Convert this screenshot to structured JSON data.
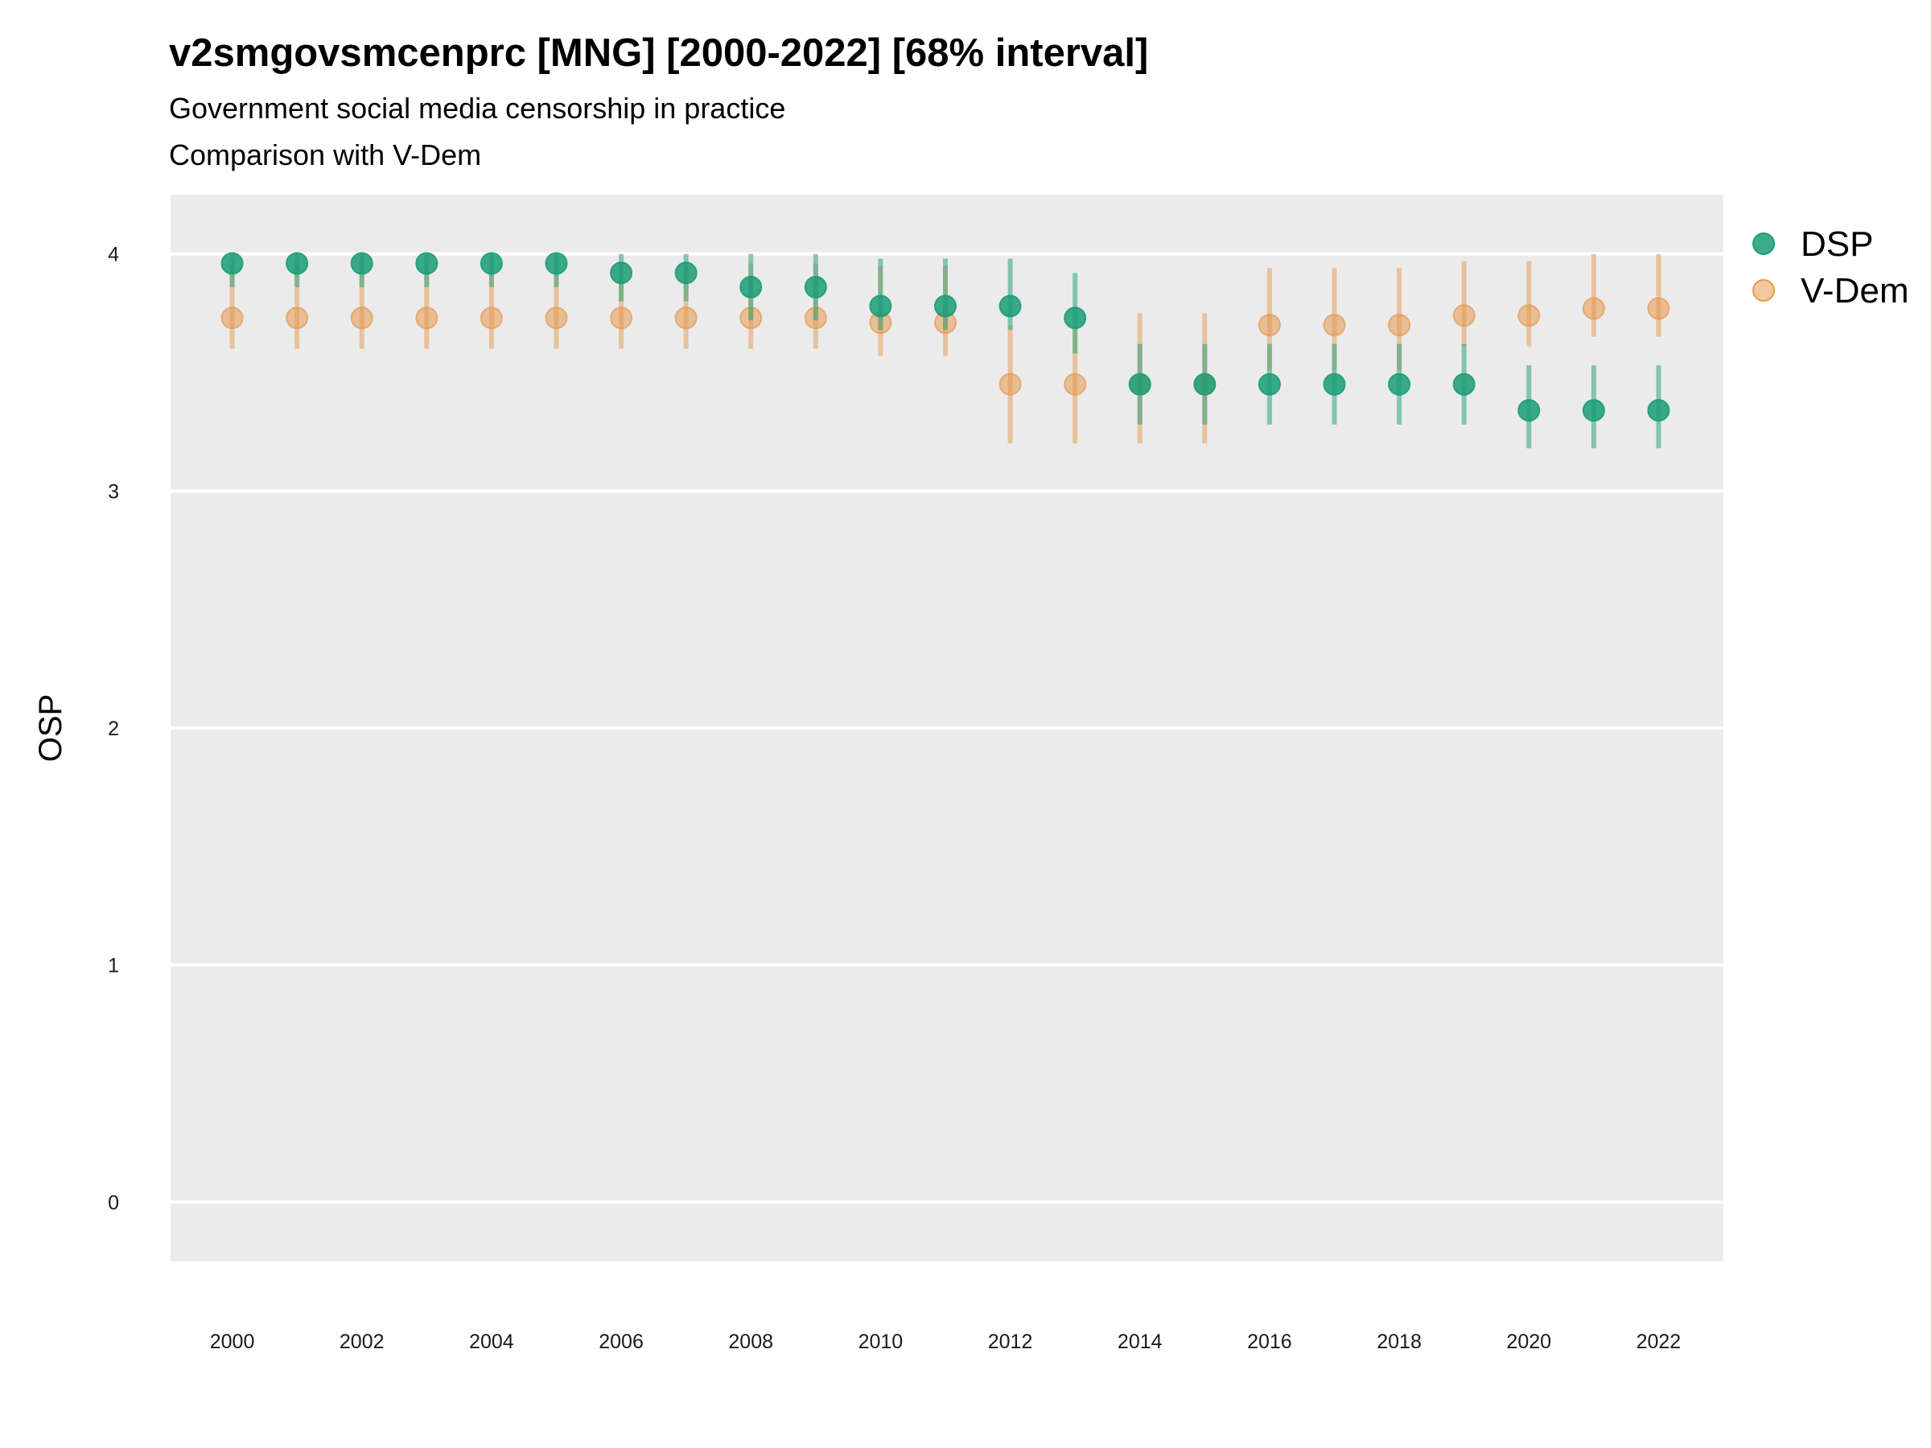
{
  "chart_data": {
    "type": "scatter",
    "title": "v2smgovsmcenprc [MNG] [2000-2022] [68% interval]",
    "subtitle": "Government social media censorship in practice",
    "subtitle2": "Comparison with V-Dem",
    "xlabel": "",
    "ylabel": "OSP",
    "ylim": [
      -0.25,
      4.25
    ],
    "xlim": [
      1999.05,
      2023.0
    ],
    "yticks": [
      0,
      1,
      2,
      3,
      4
    ],
    "xticks": [
      2000,
      2002,
      2004,
      2006,
      2008,
      2010,
      2012,
      2014,
      2016,
      2018,
      2020,
      2022
    ],
    "grid": true,
    "legend_position": "right-top",
    "x": [
      2000,
      2001,
      2002,
      2003,
      2004,
      2005,
      2006,
      2007,
      2008,
      2009,
      2010,
      2011,
      2012,
      2013,
      2014,
      2015,
      2016,
      2017,
      2018,
      2019,
      2020,
      2021,
      2022
    ],
    "series": [
      {
        "name": "V-Dem",
        "color": "#E6994F",
        "values": [
          3.73,
          3.73,
          3.73,
          3.73,
          3.73,
          3.73,
          3.73,
          3.73,
          3.73,
          3.73,
          3.71,
          3.71,
          3.45,
          3.45,
          3.45,
          3.45,
          3.7,
          3.7,
          3.7,
          3.74,
          3.74,
          3.77,
          3.77
        ],
        "lower": [
          3.6,
          3.6,
          3.6,
          3.6,
          3.6,
          3.6,
          3.6,
          3.6,
          3.6,
          3.6,
          3.57,
          3.57,
          3.2,
          3.2,
          3.2,
          3.2,
          3.51,
          3.51,
          3.51,
          3.61,
          3.61,
          3.65,
          3.65
        ],
        "upper": [
          3.96,
          3.96,
          3.96,
          3.96,
          3.96,
          3.96,
          3.96,
          3.96,
          3.96,
          3.96,
          3.95,
          3.95,
          3.7,
          3.7,
          3.75,
          3.75,
          3.94,
          3.94,
          3.94,
          3.97,
          3.97,
          4.0,
          4.0
        ]
      },
      {
        "name": "DSP",
        "color": "#1B9E77",
        "values": [
          3.96,
          3.96,
          3.96,
          3.96,
          3.96,
          3.96,
          3.92,
          3.92,
          3.86,
          3.86,
          3.78,
          3.78,
          3.78,
          3.73,
          3.45,
          3.45,
          3.45,
          3.45,
          3.45,
          3.45,
          3.34,
          3.34,
          3.34
        ],
        "lower": [
          3.86,
          3.86,
          3.86,
          3.86,
          3.86,
          3.86,
          3.8,
          3.8,
          3.72,
          3.72,
          3.68,
          3.68,
          3.68,
          3.58,
          3.28,
          3.28,
          3.28,
          3.28,
          3.28,
          3.28,
          3.18,
          3.18,
          3.18
        ],
        "upper": [
          4.0,
          4.0,
          4.0,
          4.0,
          4.0,
          4.0,
          4.0,
          4.0,
          4.0,
          4.0,
          3.98,
          3.98,
          3.98,
          3.92,
          3.62,
          3.62,
          3.62,
          3.62,
          3.62,
          3.62,
          3.53,
          3.53,
          3.53
        ]
      }
    ],
    "legend": [
      {
        "name": "DSP",
        "color": "#1B9E77"
      },
      {
        "name": "V-Dem",
        "color": "#E6994F"
      }
    ]
  }
}
